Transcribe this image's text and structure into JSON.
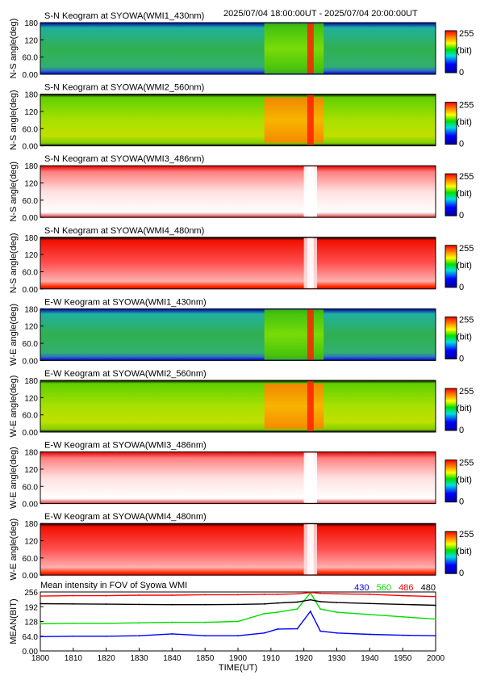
{
  "header": {
    "time_range": "2025/07/04 18:00:00UT - 2025/07/04 20:00:00UT"
  },
  "colorbar": {
    "max": "255",
    "unit": "(bit)",
    "min": "0"
  },
  "chart_data": [
    {
      "type": "heatmap",
      "title": "S-N Keogram at SYOWA(WMI1_430nm)",
      "ylabel": "N-S angle(deg)",
      "yticks": [
        "180",
        "120",
        "60.0",
        "0.00"
      ],
      "ylim": [
        0,
        180
      ],
      "base": "green-blue",
      "enhance_hm": [
        1908,
        1926
      ]
    },
    {
      "type": "heatmap",
      "title": "S-N Keogram at SYOWA(WMI2_560nm)",
      "ylabel": "N-S angle(deg)",
      "yticks": [
        "180",
        "120",
        "60.0",
        "0.00"
      ],
      "ylim": [
        0,
        180
      ],
      "base": "green-yellow",
      "enhance_hm": [
        1908,
        1926
      ]
    },
    {
      "type": "heatmap",
      "title": "S-N Keogram at SYOWA(WMI3_486nm)",
      "ylabel": "N-S angle(deg)",
      "yticks": [
        "180",
        "120",
        "60.0",
        "0.00"
      ],
      "ylim": [
        0,
        180
      ],
      "base": "white-red",
      "enhance_hm": [
        1920,
        1924
      ]
    },
    {
      "type": "heatmap",
      "title": "S-N Keogram at SYOWA(WMI4_480nm)",
      "ylabel": "N-S angle(deg)",
      "yticks": [
        "180",
        "120",
        "60.0",
        "0.00"
      ],
      "ylim": [
        0,
        180
      ],
      "base": "red",
      "enhance_hm": [
        1920,
        1924
      ]
    },
    {
      "type": "heatmap",
      "title": "E-W Keogram at SYOWA(WMI1_430nm)",
      "ylabel": "W-E angle(deg)",
      "yticks": [
        "180",
        "120",
        "60.0",
        "0.00"
      ],
      "ylim": [
        0,
        180
      ],
      "base": "green-blue",
      "enhance_hm": [
        1908,
        1926
      ]
    },
    {
      "type": "heatmap",
      "title": "E-W Keogram at SYOWA(WMI2_560nm)",
      "ylabel": "W-E angle(deg)",
      "yticks": [
        "180",
        "120",
        "60.0",
        "0.00"
      ],
      "ylim": [
        0,
        180
      ],
      "base": "green-yellow",
      "enhance_hm": [
        1908,
        1926
      ]
    },
    {
      "type": "heatmap",
      "title": "E-W Keogram at SYOWA(WMI3_486nm)",
      "ylabel": "W-E angle(deg)",
      "yticks": [
        "180",
        "120",
        "60.0",
        "0.00"
      ],
      "ylim": [
        0,
        180
      ],
      "base": "white-red",
      "enhance_hm": [
        1920,
        1924
      ]
    },
    {
      "type": "heatmap",
      "title": "E-W Keogram at SYOWA(WMI4_480nm)",
      "ylabel": "W-E angle(deg)",
      "yticks": [
        "180",
        "120",
        "60.0",
        "0.00"
      ],
      "ylim": [
        0,
        180
      ],
      "base": "red",
      "enhance_hm": [
        1920,
        1924
      ]
    },
    {
      "type": "line",
      "title": "Mean intensity in FOV of Syowa WMI",
      "ylabel": "MEAN(BIT)",
      "xlabel": "TIME(UT)",
      "yticks": [
        "256",
        "192",
        "128",
        "64.0",
        "0.00"
      ],
      "ylim": [
        0,
        256
      ],
      "xticks": [
        "1800",
        "1810",
        "1820",
        "1830",
        "1840",
        "1850",
        "1900",
        "1910",
        "1920",
        "1930",
        "1940",
        "1950",
        "2000"
      ],
      "x": [
        "1800",
        "1810",
        "1820",
        "1830",
        "1840",
        "1850",
        "1900",
        "1908",
        "1912",
        "1918",
        "1922",
        "1925",
        "1930",
        "1940",
        "1950",
        "2000"
      ],
      "series": [
        {
          "name": "430",
          "color": "#0000ff",
          "values": [
            62,
            64,
            64,
            66,
            74,
            66,
            66,
            78,
            95,
            96,
            172,
            86,
            78,
            72,
            68,
            66
          ]
        },
        {
          "name": "560",
          "color": "#00dd00",
          "values": [
            118,
            120,
            120,
            122,
            124,
            124,
            128,
            162,
            168,
            182,
            252,
            182,
            168,
            158,
            148,
            138
          ]
        },
        {
          "name": "486",
          "color": "#ff0000",
          "values": [
            238,
            240,
            240,
            242,
            242,
            244,
            244,
            246,
            246,
            248,
            254,
            250,
            248,
            246,
            240,
            236
          ]
        },
        {
          "name": "480",
          "color": "#000000",
          "values": [
            205,
            204,
            203,
            202,
            201,
            201,
            202,
            204,
            208,
            212,
            222,
            214,
            210,
            206,
            202,
            198
          ]
        }
      ]
    }
  ]
}
